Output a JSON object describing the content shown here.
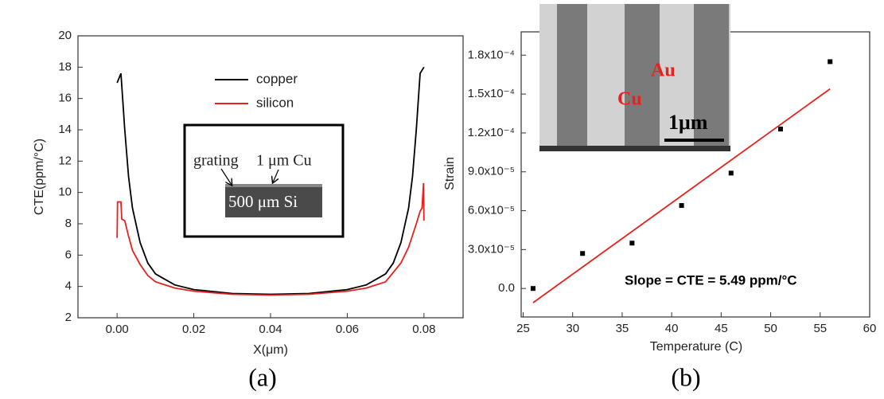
{
  "chart_data": [
    {
      "type": "line",
      "ylabel": "CTE(ppm/°C)",
      "xlabel": "X(μm)",
      "panel_label": "(a)",
      "xlim": [
        -0.0102,
        0.0902
      ],
      "ylim": [
        2,
        20
      ],
      "xticks": [
        {
          "value": 0,
          "label": "0.00"
        },
        {
          "value": 0.02,
          "label": "0.02"
        },
        {
          "value": 0.04,
          "label": "0.04"
        },
        {
          "value": 0.06,
          "label": "0.06"
        },
        {
          "value": 0.08,
          "label": "0.08"
        }
      ],
      "yticks": [
        2,
        4,
        6,
        8,
        10,
        12,
        14,
        16,
        18,
        20
      ],
      "legend": "upper-center",
      "annotations": [
        "grating",
        "1 μm Cu",
        "500 μm Si"
      ],
      "series": [
        {
          "name": "copper",
          "color": "#000000",
          "x": [
            0,
            0.0005,
            0.001,
            0.002,
            0.003,
            0.004,
            0.006,
            0.008,
            0.01,
            0.015,
            0.02,
            0.03,
            0.04,
            0.05,
            0.06,
            0.065,
            0.07,
            0.072,
            0.074,
            0.076,
            0.077,
            0.078,
            0.079,
            0.08
          ],
          "values": [
            17.0,
            17.3,
            17.6,
            14,
            11,
            9,
            6.8,
            5.5,
            4.8,
            4.1,
            3.8,
            3.55,
            3.5,
            3.55,
            3.8,
            4.1,
            4.8,
            5.5,
            6.8,
            9,
            11,
            14,
            17.6,
            18.0
          ]
        },
        {
          "name": "silicon",
          "color": "#e8211f",
          "x": [
            0,
            0.0001,
            0.001,
            0.0012,
            0.002,
            0.003,
            0.004,
            0.006,
            0.008,
            0.01,
            0.015,
            0.02,
            0.03,
            0.04,
            0.05,
            0.06,
            0.065,
            0.07,
            0.074,
            0.076,
            0.078,
            0.079,
            0.0795,
            0.0799,
            0.08
          ],
          "values": [
            7.1,
            9.4,
            9.4,
            8.3,
            8.2,
            7.2,
            6.3,
            5.4,
            4.7,
            4.3,
            3.9,
            3.7,
            3.5,
            3.45,
            3.5,
            3.7,
            3.9,
            4.3,
            5.5,
            6.5,
            8.0,
            8.8,
            9.0,
            10.6,
            8.2
          ]
        }
      ]
    },
    {
      "type": "scatter",
      "ylabel": "Strain",
      "xlabel": "Temperature (C)",
      "panel_label": "(b)",
      "xlim": [
        24.8,
        60
      ],
      "ylim": [
        -2.2e-05,
        0.000198
      ],
      "xticks": [
        25,
        30,
        35,
        40,
        45,
        50,
        55,
        60
      ],
      "yticks": [
        {
          "value": 0,
          "label": "0.0"
        },
        {
          "value": 3e-05,
          "label": "3.0x10⁻⁵"
        },
        {
          "value": 6e-05,
          "label": "6.0x10⁻⁵"
        },
        {
          "value": 9e-05,
          "label": "9.0x10⁻⁵"
        },
        {
          "value": 0.00012,
          "label": "1.2x10⁻⁴"
        },
        {
          "value": 0.00015,
          "label": "1.5x10⁻⁴"
        },
        {
          "value": 0.00018,
          "label": "1.8x10⁻⁴"
        }
      ],
      "annotations": [
        "Au",
        "Cu",
        "1μm",
        "Slope = CTE = 5.49 ppm/°C"
      ],
      "series": [
        {
          "color": "#000000",
          "marker": "square",
          "x": [
            26,
            31,
            36,
            41,
            46,
            51,
            56
          ],
          "values": [
            0,
            2.7e-05,
            3.5e-05,
            6.4e-05,
            8.9e-05,
            0.000123,
            0.000175
          ]
        },
        {
          "color": "#e8211f",
          "marker": "none",
          "x": [
            26,
            56
          ],
          "values": [
            -1.1e-05,
            0.000154
          ]
        }
      ]
    }
  ]
}
